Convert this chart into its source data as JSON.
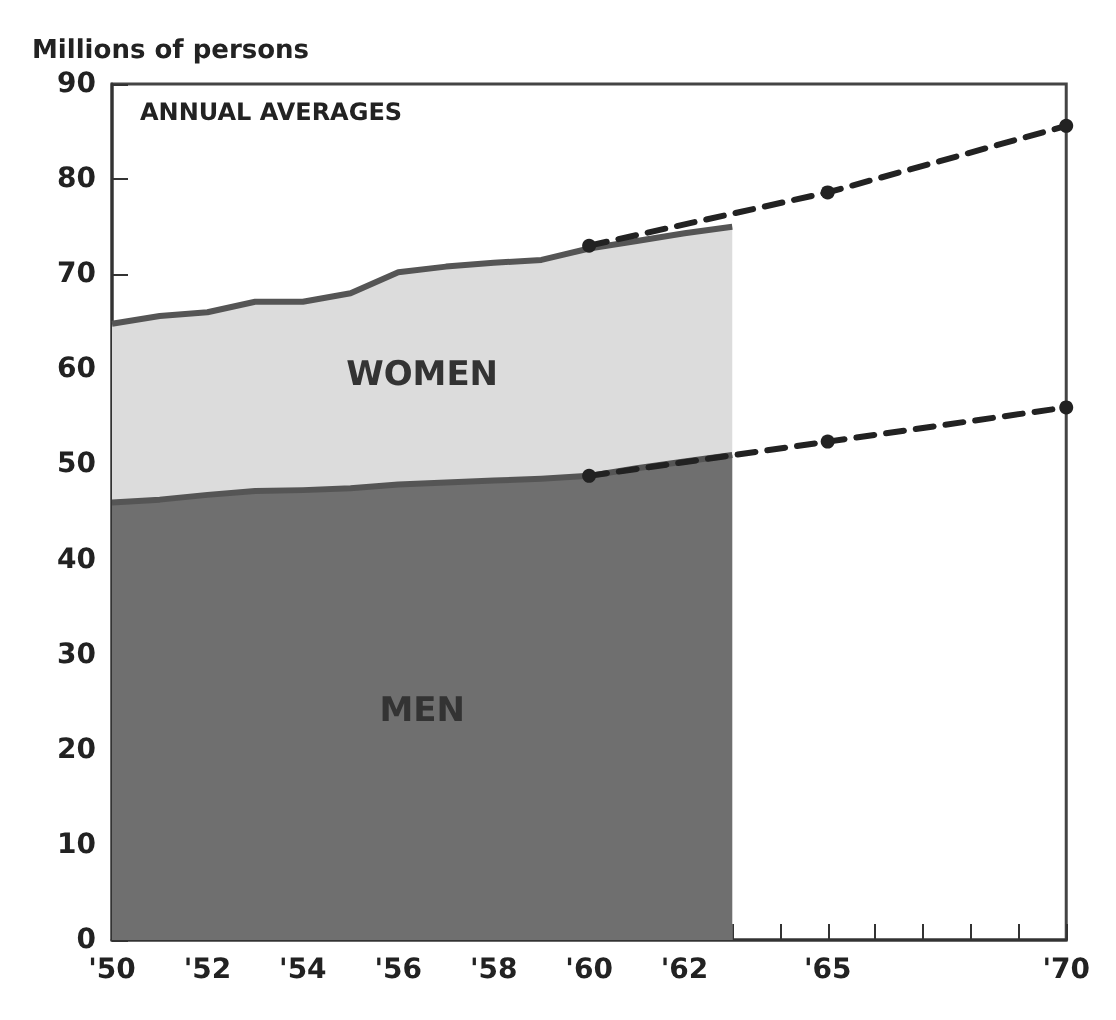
{
  "chart_data": {
    "type": "area",
    "ylabel": "Millions of persons",
    "annotations": [
      "ANNUAL AVERAGES"
    ],
    "x": [
      1950,
      1951,
      1952,
      1953,
      1954,
      1955,
      1956,
      1957,
      1958,
      1959,
      1960,
      1961,
      1962,
      1963
    ],
    "stacked": true,
    "series": [
      {
        "name": "MEN",
        "color": "#6f6f6f",
        "values": [
          46.0,
          46.3,
          46.8,
          47.2,
          47.3,
          47.5,
          47.9,
          48.1,
          48.3,
          48.5,
          48.8,
          49.6,
          50.3,
          51.0
        ]
      },
      {
        "name": "WOMEN",
        "color": "#dcdcdc",
        "values": [
          18.8,
          19.3,
          19.2,
          19.9,
          19.8,
          20.5,
          22.3,
          22.7,
          22.9,
          23.0,
          23.9,
          23.9,
          24.0,
          24.0
        ]
      },
      {
        "type": "line",
        "color": "#222222",
        "x": [
          1960,
          1965,
          1970
        ],
        "values": [
          73.0,
          78.6,
          85.6
        ],
        "line_style": "dashed",
        "marker": "circle"
      },
      {
        "type": "line",
        "color": "#222222",
        "x": [
          1960,
          1965,
          1970
        ],
        "values": [
          48.8,
          52.4,
          56.0
        ],
        "line_style": "dashed",
        "marker": "circle"
      }
    ],
    "xlim": [
      1950,
      1970
    ],
    "xticks": [
      {
        "value": 1950,
        "label": "'50"
      },
      {
        "value": 1951,
        "label": null
      },
      {
        "value": 1952,
        "label": "'52"
      },
      {
        "value": 1953,
        "label": null
      },
      {
        "value": 1954,
        "label": "'54"
      },
      {
        "value": 1955,
        "label": null
      },
      {
        "value": 1956,
        "label": "'56"
      },
      {
        "value": 1957,
        "label": null
      },
      {
        "value": 1958,
        "label": "'58"
      },
      {
        "value": 1959,
        "label": null
      },
      {
        "value": 1960,
        "label": "'60"
      },
      {
        "value": 1961,
        "label": null
      },
      {
        "value": 1962,
        "label": "'62"
      },
      {
        "value": 1963,
        "label": null
      },
      {
        "value": 1964,
        "label": null
      },
      {
        "value": 1965,
        "label": "'65"
      },
      {
        "value": 1966,
        "label": null
      },
      {
        "value": 1967,
        "label": null
      },
      {
        "value": 1968,
        "label": null
      },
      {
        "value": 1969,
        "label": null
      },
      {
        "value": 1970,
        "label": "'70"
      }
    ],
    "ylim": [
      0,
      90
    ],
    "yticks": [
      0,
      10,
      20,
      30,
      40,
      50,
      60,
      70,
      80,
      90
    ],
    "grid": false,
    "legend": false
  }
}
